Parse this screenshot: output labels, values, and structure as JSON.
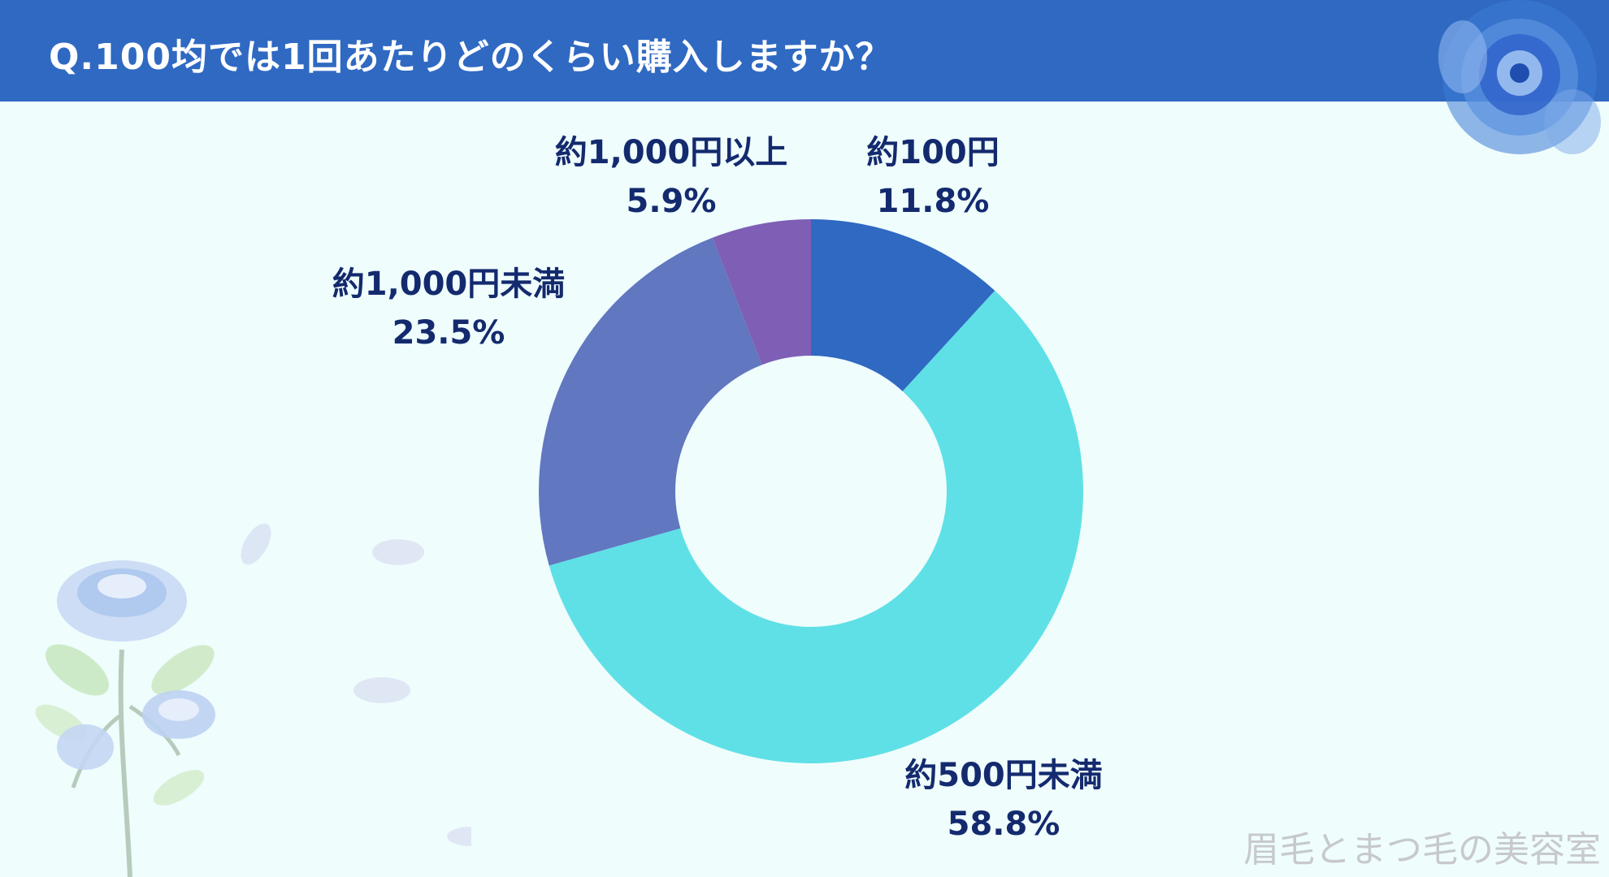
{
  "title": "Q.100均では1回あたりどのくらい購入しますか？",
  "watermark": "眉毛とまつ毛の美容室",
  "colors": {
    "header": "#2f69c2",
    "background": "#effdfd",
    "label_text": "#142a6e"
  },
  "chart_data": {
    "type": "pie",
    "style": "donut",
    "title": "Q.100均では1回あたりどのくらい購入しますか？",
    "slices": [
      {
        "label": "約100円",
        "value": 11.8,
        "value_label": "11.8%",
        "color": "#2f69c2"
      },
      {
        "label": "約500円未満",
        "value": 58.8,
        "value_label": "58.8%",
        "color": "#5fe0e6"
      },
      {
        "label": "約1,000円未満",
        "value": 23.5,
        "value_label": "23.5%",
        "color": "#6177c0"
      },
      {
        "label": "約1,000円以上",
        "value": 5.9,
        "value_label": "5.9%",
        "color": "#7e5fb5"
      }
    ]
  }
}
